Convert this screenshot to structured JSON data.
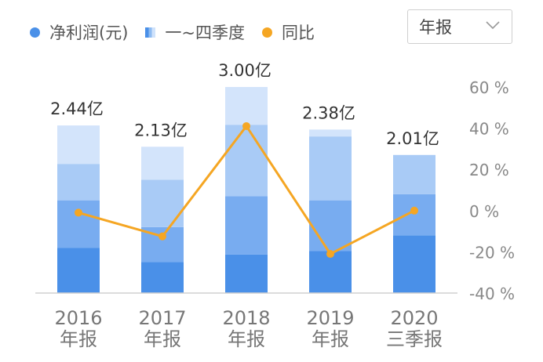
{
  "legend": {
    "net_profit": "净利润(元)",
    "quarters": "一~四季度",
    "yoy": "同比"
  },
  "period_select": {
    "value": "年报"
  },
  "colors": {
    "net_profit": "#4a90e8",
    "yoy": "#f5a623",
    "q1": "#4a90e8",
    "q2": "#78acf0",
    "q3": "#a9cbf6",
    "q4": "#d3e4fb"
  },
  "chart_data": {
    "type": "bar",
    "categories": [
      "2016\n年报",
      "2017\n年报",
      "2018\n年报",
      "2019\n年报",
      "2020\n三季报"
    ],
    "series": [
      {
        "name": "净利润(元)",
        "values": [
          2.44,
          2.13,
          3.0,
          2.38,
          2.01
        ],
        "value_labels": [
          "2.44亿",
          "2.13亿",
          "3.00亿",
          "2.38亿",
          "2.01亿"
        ]
      },
      {
        "name": "同比",
        "type": "line",
        "values": [
          -1,
          -12.5,
          41,
          -21,
          0
        ],
        "axis": "right"
      }
    ],
    "quarter_values": [
      [
        0.66,
        0.69,
        0.53,
        0.56
      ],
      [
        0.45,
        0.51,
        0.69,
        0.48
      ],
      [
        0.56,
        0.85,
        1.04,
        0.55
      ],
      [
        0.61,
        0.74,
        0.93,
        0.1
      ],
      [
        0.84,
        0.6,
        0.57
      ]
    ],
    "y_right": {
      "ticks": [
        "60 %",
        "40 %",
        "20 %",
        "0 %",
        "-20 %",
        "-40 %"
      ],
      "range": [
        -40,
        60
      ]
    },
    "y_left_range": [
      0,
      3.0
    ],
    "grid": false,
    "legend_position": "top-left"
  }
}
